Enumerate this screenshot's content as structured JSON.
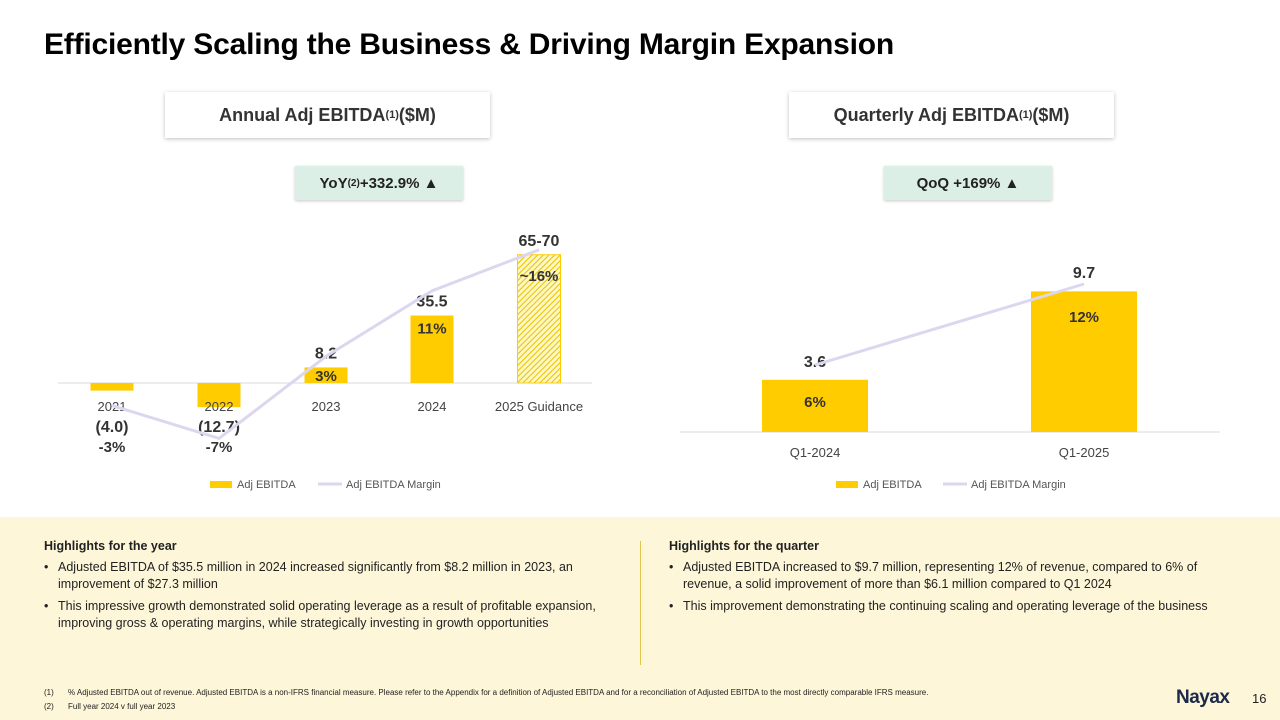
{
  "title": "Efficiently Scaling the Business & Driving Margin Expansion",
  "annual": {
    "heading": "Annual Adj EBITDA",
    "heading_sup": "(1)",
    "heading_unit": " ($M)",
    "growth_label": "YoY",
    "growth_sup": "(2)",
    "growth_value": " +332.9% ▲"
  },
  "quarterly": {
    "heading": "Quarterly Adj EBITDA",
    "heading_sup": "(1)",
    "heading_unit": " ($M)",
    "growth_label": "QoQ +169% ▲"
  },
  "chart_data": [
    {
      "type": "bar",
      "categories": [
        "2021",
        "2022",
        "2023",
        "2024",
        "2025 Guidance"
      ],
      "series": [
        {
          "name": "Adj EBITDA",
          "values": [
            -4.0,
            -12.7,
            8.2,
            35.5,
            67.5
          ],
          "labels": [
            "(4.0)",
            "(12.7)",
            "8.2",
            "35.5",
            "65-70"
          ],
          "color": "#ffcc00",
          "hatched": [
            false,
            false,
            false,
            false,
            true
          ]
        },
        {
          "name": "Adj EBITDA Margin",
          "type": "line",
          "values": [
            -3,
            -7,
            3,
            11,
            16
          ],
          "labels": [
            "-3%",
            "-7%",
            "3%",
            "11%",
            "~16%"
          ],
          "color": "#dcd6ef"
        }
      ]
    },
    {
      "type": "bar",
      "categories": [
        "Q1-2024",
        "Q1-2025"
      ],
      "series": [
        {
          "name": "Adj EBITDA",
          "values": [
            3.6,
            9.7
          ],
          "labels": [
            "3.6",
            "9.7"
          ],
          "color": "#ffcc00"
        },
        {
          "name": "Adj EBITDA Margin",
          "type": "line",
          "values": [
            6,
            12
          ],
          "labels": [
            "6%",
            "12%"
          ],
          "color": "#dcd6ef"
        }
      ]
    }
  ],
  "highlights": {
    "year": {
      "heading": "Highlights for the year",
      "items": [
        "Adjusted EBITDA of $35.5 million in 2024 increased significantly from $8.2 million in 2023, an improvement of $27.3 million",
        "This impressive growth demonstrated solid operating leverage as a result of profitable expansion, improving gross & operating margins, while strategically investing in growth opportunities"
      ]
    },
    "quarter": {
      "heading": "Highlights for the quarter",
      "items": [
        "Adjusted EBITDA increased to $9.7 million, representing 12% of revenue, compared to 6% of revenue, a solid improvement of more than $6.1 million compared to Q1 2024",
        "This improvement demonstrating the continuing scaling and operating leverage of the business"
      ]
    }
  },
  "footnotes": [
    {
      "num": "(1)",
      "text": "% Adjusted EBITDA out of revenue. Adjusted EBITDA is a non-IFRS financial measure. Please refer to the Appendix for a definition of Adjusted EBITDA and for a reconciliation of Adjusted EBITDA to the most directly comparable IFRS measure."
    },
    {
      "num": "(2)",
      "text": "Full year 2024 v full year 2023"
    }
  ],
  "brand": "Nayax",
  "page_number": "16",
  "colors": {
    "bar": "#ffcc00",
    "margin_line": "#dcd6ef",
    "growth_box": "#dcefe6",
    "highlights_bg": "#fdf6d8"
  }
}
